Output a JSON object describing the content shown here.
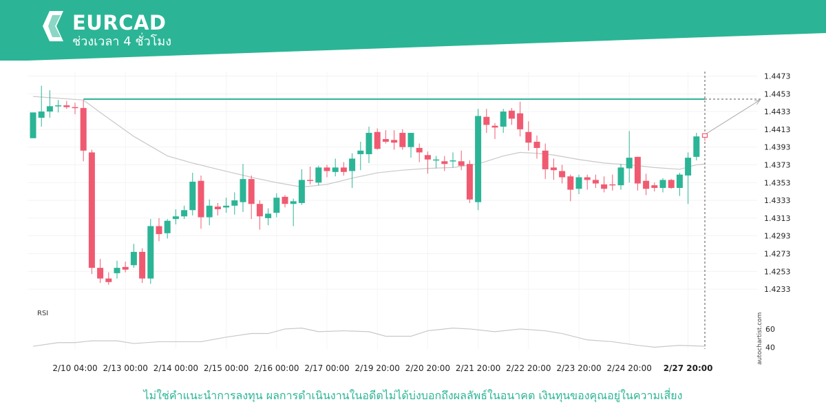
{
  "header": {
    "symbol": "EURCAD",
    "period": "ช่วงเวลา 4 ชั่วโมง"
  },
  "colors": {
    "brand": "#2bb596",
    "bullish": "#2bb596",
    "bearish": "#f05a71",
    "ma": "#c8c8c8",
    "level": "#2bb596"
  },
  "chart_data": {
    "type": "candlestick",
    "ylim": [
      1.4223,
      1.4478
    ],
    "y_ticks": [
      "1.4473",
      "1.4453",
      "1.4433",
      "1.4413",
      "1.4393",
      "1.4373",
      "1.4353",
      "1.4333",
      "1.4313",
      "1.4293",
      "1.4273",
      "1.4253",
      "1.4233"
    ],
    "x_ticks": [
      "2/10 04:00",
      "2/13 00:00",
      "2/14 00:00",
      "2/15 00:00",
      "2/16 00:00",
      "2/17 00:00",
      "2/19 20:00",
      "2/20 20:00",
      "2/21 20:00",
      "2/22 20:00",
      "2/23 20:00",
      "2/24 20:00",
      "2/27 20:00"
    ],
    "x_tick_index": [
      5,
      11,
      17,
      23,
      29,
      35,
      41,
      47,
      53,
      59,
      65,
      71,
      78
    ],
    "candles": [
      [
        1.4403,
        1.4432,
        1.4403,
        1.4432
      ],
      [
        1.4426,
        1.4462,
        1.4416,
        1.4433
      ],
      [
        1.4433,
        1.4457,
        1.4426,
        1.4439
      ],
      [
        1.4439,
        1.4446,
        1.4432,
        1.444
      ],
      [
        1.444,
        1.4445,
        1.4436,
        1.4438
      ],
      [
        1.4438,
        1.4443,
        1.443,
        1.4437
      ],
      [
        1.4437,
        1.4446,
        1.4377,
        1.4389
      ],
      [
        1.4387,
        1.439,
        1.425,
        1.4257
      ],
      [
        1.4257,
        1.4267,
        1.424,
        1.4245
      ],
      [
        1.4245,
        1.4252,
        1.4238,
        1.4241
      ],
      [
        1.4251,
        1.4265,
        1.4245,
        1.4257
      ],
      [
        1.4258,
        1.4264,
        1.4252,
        1.4255
      ],
      [
        1.426,
        1.4284,
        1.4257,
        1.4275
      ],
      [
        1.4275,
        1.4279,
        1.424,
        1.4245
      ],
      [
        1.4245,
        1.4312,
        1.4239,
        1.4304
      ],
      [
        1.4304,
        1.4313,
        1.4287,
        1.4295
      ],
      [
        1.4296,
        1.4312,
        1.429,
        1.431
      ],
      [
        1.4312,
        1.4323,
        1.4306,
        1.4315
      ],
      [
        1.4315,
        1.4327,
        1.4312,
        1.4322
      ],
      [
        1.4322,
        1.4364,
        1.4316,
        1.4354
      ],
      [
        1.4355,
        1.4361,
        1.4301,
        1.4314
      ],
      [
        1.4314,
        1.4334,
        1.4305,
        1.4327
      ],
      [
        1.4326,
        1.433,
        1.4316,
        1.4323
      ],
      [
        1.4325,
        1.4336,
        1.4319,
        1.4327
      ],
      [
        1.4327,
        1.4342,
        1.4317,
        1.4333
      ],
      [
        1.4331,
        1.4374,
        1.432,
        1.4357
      ],
      [
        1.4357,
        1.4361,
        1.4312,
        1.4329
      ],
      [
        1.4329,
        1.4333,
        1.43,
        1.4315
      ],
      [
        1.4313,
        1.4324,
        1.4305,
        1.4318
      ],
      [
        1.4319,
        1.4341,
        1.4314,
        1.4336
      ],
      [
        1.4337,
        1.4339,
        1.4325,
        1.4329
      ],
      [
        1.4329,
        1.4335,
        1.4304,
        1.4332
      ],
      [
        1.433,
        1.4368,
        1.4328,
        1.4356
      ],
      [
        1.4356,
        1.4371,
        1.4351,
        1.4355
      ],
      [
        1.4353,
        1.4372,
        1.435,
        1.437
      ],
      [
        1.437,
        1.4373,
        1.4359,
        1.4366
      ],
      [
        1.4365,
        1.438,
        1.436,
        1.437
      ],
      [
        1.437,
        1.4376,
        1.4361,
        1.4365
      ],
      [
        1.4366,
        1.4386,
        1.4347,
        1.438
      ],
      [
        1.4385,
        1.4399,
        1.4367,
        1.4389
      ],
      [
        1.4385,
        1.4416,
        1.4375,
        1.4409
      ],
      [
        1.441,
        1.4414,
        1.439,
        1.4391
      ],
      [
        1.4402,
        1.4412,
        1.4397,
        1.4399
      ],
      [
        1.4401,
        1.4412,
        1.439,
        1.4398
      ],
      [
        1.4409,
        1.4413,
        1.439,
        1.4393
      ],
      [
        1.4393,
        1.4409,
        1.4381,
        1.4409
      ],
      [
        1.4392,
        1.4397,
        1.4376,
        1.4387
      ],
      [
        1.4384,
        1.4388,
        1.4363,
        1.4379
      ],
      [
        1.4378,
        1.4383,
        1.4369,
        1.4379
      ],
      [
        1.4377,
        1.4383,
        1.4366,
        1.4374
      ],
      [
        1.4377,
        1.4387,
        1.437,
        1.4378
      ],
      [
        1.4377,
        1.4389,
        1.4367,
        1.4372
      ],
      [
        1.4374,
        1.4378,
        1.433,
        1.4334
      ],
      [
        1.4331,
        1.4436,
        1.4322,
        1.4428
      ],
      [
        1.4427,
        1.4436,
        1.4409,
        1.4418
      ],
      [
        1.4417,
        1.442,
        1.4402,
        1.4415
      ],
      [
        1.4416,
        1.4436,
        1.4409,
        1.4433
      ],
      [
        1.4434,
        1.4437,
        1.4418,
        1.4425
      ],
      [
        1.4431,
        1.4444,
        1.4405,
        1.4413
      ],
      [
        1.441,
        1.4422,
        1.4389,
        1.4398
      ],
      [
        1.4399,
        1.4406,
        1.438,
        1.4392
      ],
      [
        1.4389,
        1.4397,
        1.4357,
        1.4368
      ],
      [
        1.437,
        1.438,
        1.4356,
        1.4367
      ],
      [
        1.4366,
        1.4373,
        1.4352,
        1.4359
      ],
      [
        1.436,
        1.4362,
        1.4332,
        1.4345
      ],
      [
        1.4346,
        1.4362,
        1.434,
        1.4359
      ],
      [
        1.4359,
        1.4362,
        1.4345,
        1.4356
      ],
      [
        1.4356,
        1.4362,
        1.4347,
        1.4352
      ],
      [
        1.4351,
        1.436,
        1.4342,
        1.4346
      ],
      [
        1.4351,
        1.4362,
        1.4344,
        1.435
      ],
      [
        1.435,
        1.4374,
        1.4345,
        1.437
      ],
      [
        1.4369,
        1.4411,
        1.4353,
        1.4381
      ],
      [
        1.4382,
        1.4382,
        1.4344,
        1.4352
      ],
      [
        1.4355,
        1.4363,
        1.4339,
        1.4346
      ],
      [
        1.435,
        1.4353,
        1.4343,
        1.4347
      ],
      [
        1.4347,
        1.4358,
        1.4342,
        1.4356
      ],
      [
        1.4356,
        1.4357,
        1.4346,
        1.4347
      ],
      [
        1.4347,
        1.4364,
        1.4338,
        1.4362
      ],
      [
        1.4361,
        1.4387,
        1.4329,
        1.4381
      ],
      [
        1.4382,
        1.4409,
        1.4378,
        1.4405
      ],
      [
        1.4408,
        1.4408,
        1.44,
        1.4404
      ]
    ],
    "moving_average": [
      [
        0,
        1.445
      ],
      [
        6,
        1.4446
      ],
      [
        8,
        1.4432
      ],
      [
        12,
        1.4405
      ],
      [
        16,
        1.4383
      ],
      [
        19,
        1.4375
      ],
      [
        22,
        1.4368
      ],
      [
        26,
        1.4359
      ],
      [
        29,
        1.4353
      ],
      [
        32,
        1.4348
      ],
      [
        35,
        1.4351
      ],
      [
        38,
        1.4358
      ],
      [
        41,
        1.4364
      ],
      [
        44,
        1.4367
      ],
      [
        47,
        1.4369
      ],
      [
        50,
        1.437
      ],
      [
        53,
        1.4374
      ],
      [
        56,
        1.4383
      ],
      [
        58,
        1.4387
      ],
      [
        60,
        1.4386
      ],
      [
        62,
        1.4384
      ],
      [
        65,
        1.4379
      ],
      [
        68,
        1.4375
      ],
      [
        71,
        1.4373
      ],
      [
        74,
        1.437
      ],
      [
        77,
        1.4368
      ],
      [
        79,
        1.4373
      ],
      [
        80,
        1.4374
      ]
    ],
    "resistance_level": 1.4447,
    "forecast": {
      "from_index": 80,
      "from_value": 1.4407,
      "to_value": 1.4446
    },
    "rsi": {
      "label": "RSI",
      "ylim": [
        38,
        66
      ],
      "ticks": [
        "60",
        "40"
      ],
      "values": [
        [
          0,
          41
        ],
        [
          3,
          45
        ],
        [
          5,
          45
        ],
        [
          7,
          47
        ],
        [
          10,
          47
        ],
        [
          12,
          44
        ],
        [
          15,
          46
        ],
        [
          18,
          46
        ],
        [
          20,
          46
        ],
        [
          23,
          51
        ],
        [
          26,
          55
        ],
        [
          28,
          55
        ],
        [
          30,
          60
        ],
        [
          32,
          61
        ],
        [
          34,
          57
        ],
        [
          37,
          58
        ],
        [
          40,
          57
        ],
        [
          42,
          52
        ],
        [
          45,
          52
        ],
        [
          47,
          58
        ],
        [
          50,
          61
        ],
        [
          52,
          60
        ],
        [
          55,
          57
        ],
        [
          58,
          60
        ],
        [
          61,
          58
        ],
        [
          63,
          55
        ],
        [
          66,
          48
        ],
        [
          69,
          46
        ],
        [
          72,
          42
        ],
        [
          74,
          40
        ],
        [
          77,
          42
        ],
        [
          80,
          41
        ]
      ]
    },
    "watermark": "autochartist.com"
  },
  "disclaimer": "ไม่ใช่คำแนะนำการลงทุน ผลการดำเนินงานในอดีตไม่ได้บ่งบอกถึงผลลัพธ์ในอนาคต เงินทุนของคุณอยู่ในความเสี่ยง"
}
